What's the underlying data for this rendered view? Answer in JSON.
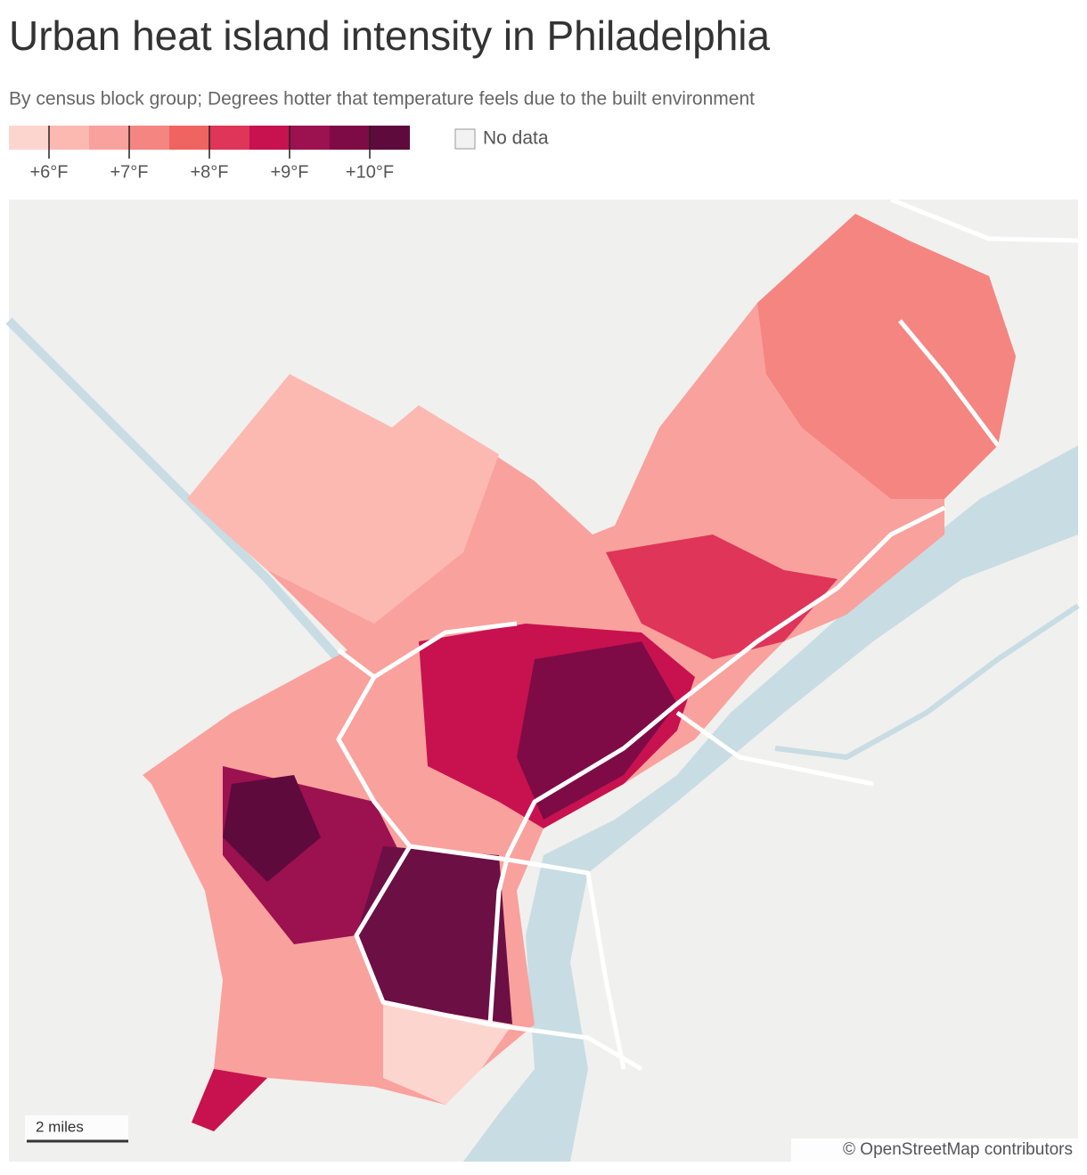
{
  "header": {
    "title": "Urban heat island intensity in Philadelphia",
    "subtitle": "By census block group; Degrees hotter that temperature feels due to the built environment"
  },
  "legend": {
    "colors": [
      "#fdd5cf",
      "#fcb9b2",
      "#f9a19d",
      "#f48581",
      "#ef6461",
      "#de3558",
      "#c7124f",
      "#9c1150",
      "#7e0b45",
      "#5e0a3d"
    ],
    "labels": [
      "+6°F",
      "+7°F",
      "+8°F",
      "+9°F",
      "+10°F"
    ],
    "no_data": "No data",
    "no_data_color": "#f2f2f2"
  },
  "map": {
    "scale_label": "2 miles",
    "attribution": "© OpenStreetMap contributors"
  }
}
